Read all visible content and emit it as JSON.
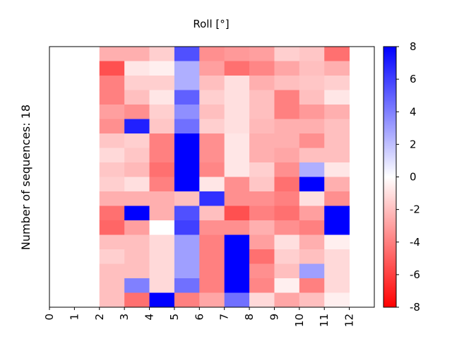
{
  "chart_data": {
    "type": "heatmap",
    "title": "Roll [°]",
    "xlabel": "",
    "ylabel": "Number of sequences: 18",
    "x_categories": [
      "0",
      "1",
      "2",
      "3",
      "4",
      "5",
      "6",
      "7",
      "8",
      "9",
      "10",
      "11",
      "12"
    ],
    "n_rows": 18,
    "grid": false,
    "colormap": "bwr_r",
    "vmin": -8,
    "vmax": 8,
    "colorbar_ticks": [
      "8",
      "6",
      "4",
      "2",
      "0",
      "-2",
      "-4",
      "-6",
      "-8"
    ],
    "colorbar_tick_values": [
      8,
      6,
      4,
      2,
      0,
      -2,
      -4,
      -6,
      -8
    ],
    "values": [
      [
        null,
        null,
        -2.5,
        -2.5,
        -1.5,
        5.5,
        -3.5,
        -3.2,
        -3.0,
        -1.5,
        -1.8,
        -4.5,
        null
      ],
      [
        null,
        null,
        -5.5,
        -0.8,
        -0.5,
        2.5,
        -3.0,
        -4.5,
        -3.8,
        -2.8,
        -2.0,
        -2.5,
        null
      ],
      [
        null,
        null,
        -4.0,
        -1.5,
        -1.5,
        2.5,
        -2.0,
        -1.0,
        -2.5,
        -2.0,
        -1.8,
        -1.5,
        null
      ],
      [
        null,
        null,
        -4.0,
        -2.0,
        -0.8,
        5.0,
        -1.5,
        -1.0,
        -2.0,
        -4.0,
        -2.0,
        -0.8,
        null
      ],
      [
        null,
        null,
        -3.0,
        -3.5,
        -1.5,
        3.5,
        -2.0,
        -1.0,
        -2.0,
        -4.0,
        -3.2,
        -2.5,
        null
      ],
      [
        null,
        null,
        -3.5,
        7.0,
        -1.8,
        4.5,
        -1.5,
        -1.0,
        -2.2,
        -2.5,
        -2.5,
        -2.0,
        null
      ],
      [
        null,
        null,
        -1.8,
        -1.5,
        -4.0,
        8.0,
        -3.5,
        -0.8,
        -2.5,
        -2.5,
        -3.5,
        -2.0,
        null
      ],
      [
        null,
        null,
        -1.2,
        -1.8,
        -4.0,
        8.0,
        -3.5,
        -0.8,
        -2.5,
        -2.8,
        -2.0,
        -2.0,
        null
      ],
      [
        null,
        null,
        -1.8,
        -2.2,
        -4.5,
        8.0,
        -3.8,
        -0.8,
        -1.5,
        -3.5,
        2.5,
        -0.8,
        null
      ],
      [
        null,
        null,
        -1.5,
        -1.0,
        -4.0,
        8.0,
        -0.8,
        -3.5,
        -1.8,
        -4.5,
        8.0,
        -2.5,
        null
      ],
      [
        null,
        null,
        -2.5,
        -2.5,
        -2.5,
        -2.0,
        6.5,
        -3.5,
        -3.5,
        -4.0,
        -1.0,
        -3.5,
        null
      ],
      [
        null,
        null,
        -4.5,
        8.0,
        -2.5,
        5.5,
        -2.0,
        -5.5,
        -4.0,
        -4.5,
        -3.0,
        8.0,
        null
      ],
      [
        null,
        null,
        -4.8,
        -3.0,
        0.0,
        6.0,
        -3.5,
        -3.5,
        -2.5,
        -3.5,
        -4.0,
        8.0,
        null
      ],
      [
        null,
        null,
        -2.0,
        -2.0,
        -1.2,
        3.0,
        -4.0,
        8.0,
        -3.0,
        -1.0,
        -2.5,
        -0.5,
        null
      ],
      [
        null,
        null,
        -1.5,
        -2.0,
        -1.2,
        3.0,
        -4.0,
        8.0,
        -4.5,
        -1.5,
        -2.0,
        -1.2,
        null
      ],
      [
        null,
        null,
        -2.0,
        -2.0,
        -1.2,
        3.0,
        -4.0,
        8.0,
        -3.5,
        -2.0,
        3.0,
        -1.2,
        null
      ],
      [
        null,
        null,
        -2.0,
        4.0,
        -1.2,
        4.5,
        -4.0,
        8.0,
        -3.8,
        -0.5,
        -4.0,
        -1.2,
        null
      ],
      [
        null,
        null,
        -2.0,
        -4.5,
        8.0,
        -4.0,
        -2.8,
        4.5,
        -1.2,
        -2.8,
        -2.0,
        -0.5,
        null
      ]
    ]
  }
}
